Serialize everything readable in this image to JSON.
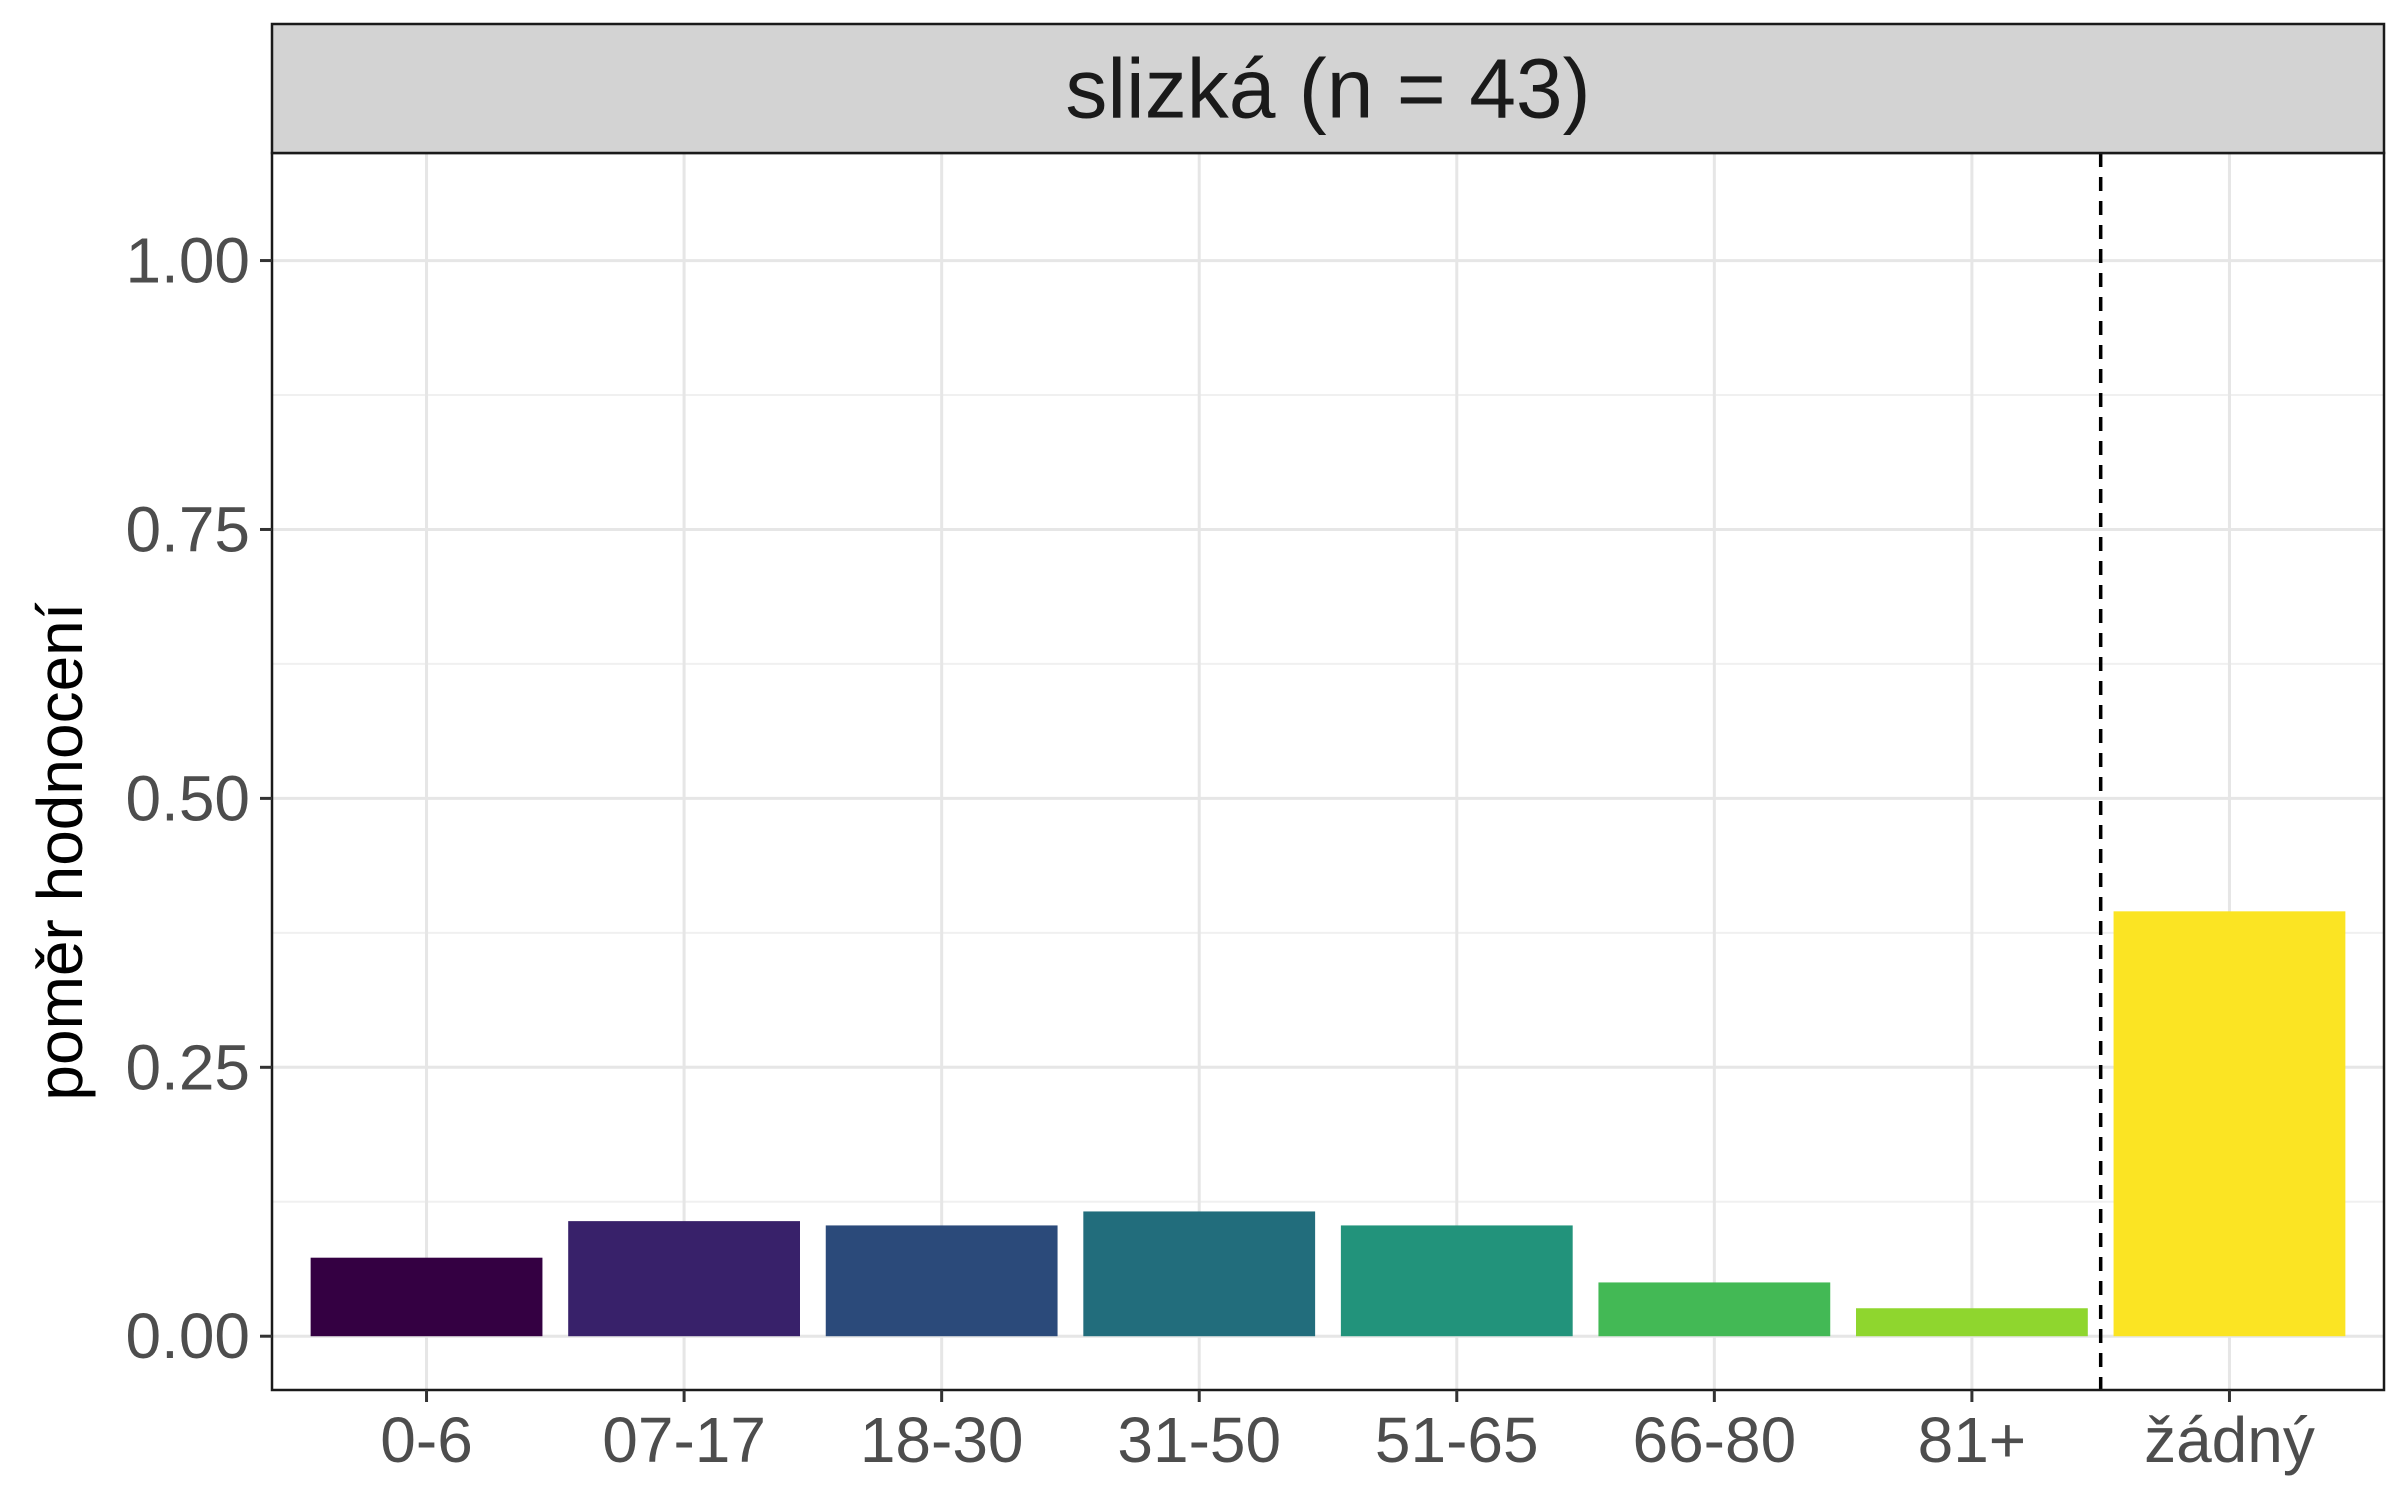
{
  "chart_data": {
    "type": "bar",
    "title": "slizká (n = 43)",
    "xlabel": "",
    "ylabel": "poměr hodnocení",
    "categories": [
      "0-6",
      "07-17",
      "18-30",
      "31-50",
      "51-65",
      "66-80",
      "81+",
      "žádný"
    ],
    "values": [
      0.073,
      0.107,
      0.103,
      0.116,
      0.103,
      0.05,
      0.026,
      0.395
    ],
    "colors": [
      "#340042",
      "#38216a",
      "#2b4a7a",
      "#226d7c",
      "#22937b",
      "#43b955",
      "#8fd62e",
      "#fbe423"
    ],
    "ylim": [
      -0.05,
      1.1
    ],
    "yticks": [
      0,
      0.25,
      0.5,
      0.75,
      1.0
    ],
    "ytick_labels": [
      "0.00",
      "0.25",
      "0.50",
      "0.75",
      "1.00"
    ],
    "reference_line": {
      "between": [
        "81+",
        "žádný"
      ],
      "style": "dashed",
      "color": "#000000"
    },
    "grid": true,
    "legend": "none"
  }
}
